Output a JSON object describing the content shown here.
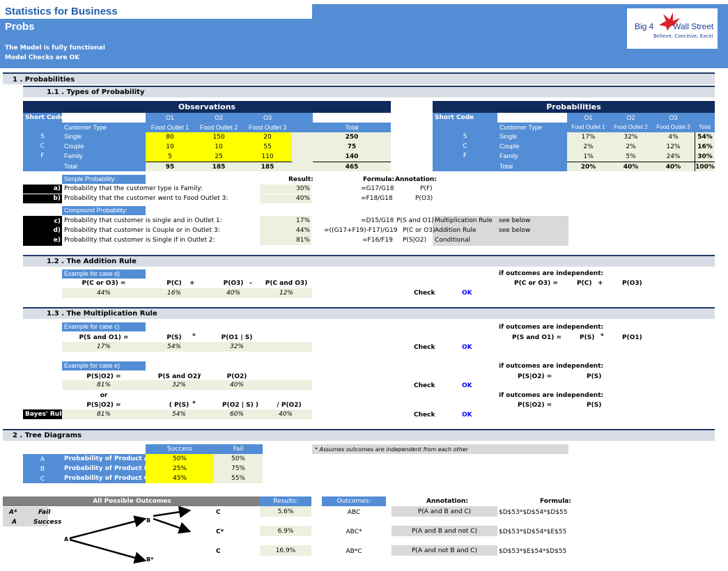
{
  "header": {
    "title": "Statistics for Business",
    "subtitle": "Probs",
    "status1": "The Model is fully functional",
    "status2": "Model Checks are OK",
    "logo_text": "Big 4",
    "logo_text2": "Wall Street",
    "logo_tagline": "Believe, Conceive, Excel"
  },
  "s1": {
    "title": "1 .  Probabilities",
    "sub": "1.1 .  Types of Probability"
  },
  "obs": {
    "heading": "Observations",
    "short_code": "Short Code",
    "cust_type": "Customer Type",
    "outlets": [
      "O1",
      "O2",
      "O3"
    ],
    "outlet_names": [
      "Food Outlet 1",
      "Food Outlet 2",
      "Food Outlet 3"
    ],
    "total_h": "Total",
    "rows": [
      {
        "code": "S",
        "type": "Single",
        "v": [
          "80",
          "150",
          "20"
        ],
        "t": "250"
      },
      {
        "code": "C",
        "type": "Couple",
        "v": [
          "10",
          "10",
          "55"
        ],
        "t": "75"
      },
      {
        "code": "F",
        "type": "Family",
        "v": [
          "5",
          "25",
          "110"
        ],
        "t": "140"
      }
    ],
    "total_row": {
      "label": "Total",
      "v": [
        "95",
        "185",
        "185"
      ],
      "t": "465"
    }
  },
  "probs": {
    "heading": "Probabilities",
    "rows": [
      {
        "code": "S",
        "type": "Single",
        "v": [
          "17%",
          "32%",
          "4%"
        ],
        "t": "54%"
      },
      {
        "code": "C",
        "type": "Couple",
        "v": [
          "2%",
          "2%",
          "12%"
        ],
        "t": "16%"
      },
      {
        "code": "F",
        "type": "Family",
        "v": [
          "1%",
          "5%",
          "24%"
        ],
        "t": "30%"
      }
    ],
    "total_row": {
      "label": "Total",
      "v": [
        "20%",
        "40%",
        "40%"
      ],
      "t": "100%"
    }
  },
  "qa": {
    "simple": "Simple Probability:",
    "compound": "Compound Probability:",
    "result_h": "Result:",
    "formula_h": "Formula:",
    "annot_h": "Annotation:",
    "items": [
      {
        "k": "a)",
        "q": "Probability that the customer type is Family:",
        "r": "30%",
        "f": "=G17/G18",
        "a": "P(F)",
        "rule": "",
        "note": ""
      },
      {
        "k": "b)",
        "q": "Probability that the customer went to Food Outlet 3:",
        "r": "40%",
        "f": "=F18/G18",
        "a": "P(O3)",
        "rule": "",
        "note": ""
      },
      {
        "k": "c)",
        "q": "Probability that customer is single and in Outlet 1:",
        "r": "17%",
        "f": "=D15/G18",
        "a": "P(S and O1)",
        "rule": "Multiplication Rule",
        "note": "see below"
      },
      {
        "k": "d)",
        "q": "Probability that customer is Couple or in Outlet 3:",
        "r": "44%",
        "f": "=((G17+F19)-F17)/G19",
        "a": "P(C or O3)",
        "rule": "Addition Rule",
        "note": "see below"
      },
      {
        "k": "e)",
        "q": "Probability that customer is Single if in Outlet 2:",
        "r": "81%",
        "f": "=F16/F19",
        "a": "P(S|O2)",
        "rule": "Conditional",
        "note": ""
      }
    ]
  },
  "add": {
    "sub": "1.2 .  The Addition Rule",
    "example": "Example for case d)",
    "h": [
      "P(C or O3) =",
      "P(C)",
      "+",
      "P(O3)",
      "-",
      "P(C and O3)"
    ],
    "v": [
      "44%",
      "16%",
      "40%",
      "12%"
    ],
    "check": "Check",
    "ok": "OK",
    "ind": "if outcomes are independent:",
    "ind_h": [
      "P(C or O3) =",
      "P(C)",
      "+",
      "P(O3)"
    ]
  },
  "mult": {
    "sub": "1.3 .  The Multiplication Rule",
    "ex_c": "Example for case c)",
    "c_h": [
      "P(S and O1) =",
      "P(S)",
      "*",
      "P(O1 | S)"
    ],
    "c_v": [
      "17%",
      "54%",
      "32%"
    ],
    "ex_e": "Example for case e)",
    "e_h": [
      "P(S|O2) =",
      "P(S and O2)",
      "/",
      "P(O2)"
    ],
    "e_v": [
      "81%",
      "32%",
      "40%"
    ],
    "or": "or",
    "bayes": "Bayes' Rule",
    "b_h": [
      "P(S|O2) =",
      "( P(S)",
      "*",
      "P(O2 | S) )",
      "/ P(O2)"
    ],
    "b_v": [
      "81%",
      "54%",
      "60%",
      "40%"
    ],
    "check": "Check",
    "ok": "OK",
    "ind": "if outcomes are independent:",
    "ind_c": [
      "P(S and O1) =",
      "P(S)",
      "*",
      "P(O1)"
    ],
    "ind_e": [
      "P(S|O2) =",
      "P(S)"
    ],
    "ind_b": [
      "P(S|O2) =",
      "P(S)"
    ]
  },
  "tree": {
    "title": "2 .  Tree Diagrams",
    "success": "Success",
    "fail": "Fail",
    "note": "* Assumes outcomes are independent from each other",
    "rows": [
      {
        "code": "A",
        "label": "Probability of Product A",
        "s": "50%",
        "f": "50%"
      },
      {
        "code": "B",
        "label": "Probability of Product B",
        "s": "25%",
        "f": "75%"
      },
      {
        "code": "C",
        "label": "Probability of Product C",
        "s": "45%",
        "f": "55%"
      }
    ],
    "all": "All Possible Outcomes",
    "results_h": "Results:",
    "outcomes_h": "Outcomes:",
    "annot_h": "Annotation:",
    "formula_h": "Formula:",
    "legend": [
      [
        "A*",
        "Fail"
      ],
      [
        "A",
        "Success"
      ]
    ],
    "nodes": {
      "a": "A",
      "b": "B",
      "bstar": "B*"
    },
    "out": [
      {
        "leaf": "C",
        "r": "5.6%",
        "o": "ABC",
        "a": "P(A and B and C)",
        "f": "$D$53*$D$54*$D$55"
      },
      {
        "leaf": "C*",
        "r": "6.9%",
        "o": "ABC*",
        "a": "P(A and B and not C)",
        "f": "$D$53*$D$54*$E$55"
      },
      {
        "leaf": "C",
        "r": "16.9%",
        "o": "AB*C",
        "a": "P(A and not B and C)",
        "f": "$D$53*$E$54*$D$55"
      }
    ]
  }
}
